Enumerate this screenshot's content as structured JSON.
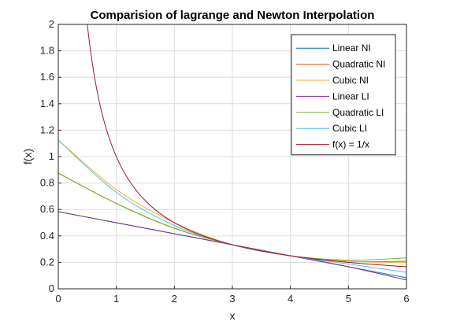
{
  "chart_data": {
    "type": "line",
    "title": "Comparision of lagrange and Newton Interpolation",
    "xlabel": "x",
    "ylabel": "f(x)",
    "xlim": [
      0,
      6
    ],
    "ylim": [
      0,
      2
    ],
    "x_ticks": [
      "0",
      "1",
      "2",
      "3",
      "4",
      "5",
      "6"
    ],
    "y_ticks": [
      "0",
      "0.2",
      "0.4",
      "0.6",
      "0.8",
      "1",
      "1.2",
      "1.4",
      "1.6",
      "1.8",
      "2"
    ],
    "grid": true,
    "legend_position": "top-right",
    "series": [
      {
        "name": "Linear NI",
        "color": "#0072BD",
        "x": [
          0,
          1,
          2,
          3,
          4,
          5,
          6
        ],
        "y": [
          0.5833,
          0.5,
          0.4167,
          0.3333,
          0.25,
          0.1667,
          0.0833
        ]
      },
      {
        "name": "Quadratic NI",
        "color": "#D95319",
        "x": [
          0,
          1,
          2,
          3,
          4,
          5,
          6
        ],
        "y": [
          0.875,
          0.6458,
          0.4583,
          0.3333,
          0.25,
          0.2083,
          0.2083
        ]
      },
      {
        "name": "Cubic NI",
        "color": "#EDB120",
        "x": [
          0,
          1,
          2,
          3,
          4,
          5,
          6
        ],
        "y": [
          1.125,
          0.75,
          0.5,
          0.3333,
          0.25,
          0.2083,
          0.2
        ]
      },
      {
        "name": "Linear LI",
        "color": "#7E2F8E",
        "x": [
          0,
          1,
          2,
          3,
          4,
          5,
          6
        ],
        "y": [
          0.5833,
          0.5,
          0.4167,
          0.3333,
          0.25,
          0.1667,
          0.0667
        ]
      },
      {
        "name": "Quadratic LI",
        "color": "#77AC30",
        "x": [
          0,
          1,
          2,
          3,
          4,
          5,
          6
        ],
        "y": [
          0.875,
          0.6458,
          0.4583,
          0.3333,
          0.25,
          0.2167,
          0.2333
        ]
      },
      {
        "name": "Cubic LI",
        "color": "#4DBEEE",
        "x": [
          0,
          1,
          2,
          3,
          4,
          5,
          6
        ],
        "y": [
          1.125,
          0.7292,
          0.4792,
          0.3333,
          0.25,
          0.1875,
          0.125
        ]
      },
      {
        "name": "f(x) = 1/x",
        "color": "#A2142F",
        "function": "1/x",
        "x_range": [
          0.5,
          6
        ]
      }
    ]
  }
}
